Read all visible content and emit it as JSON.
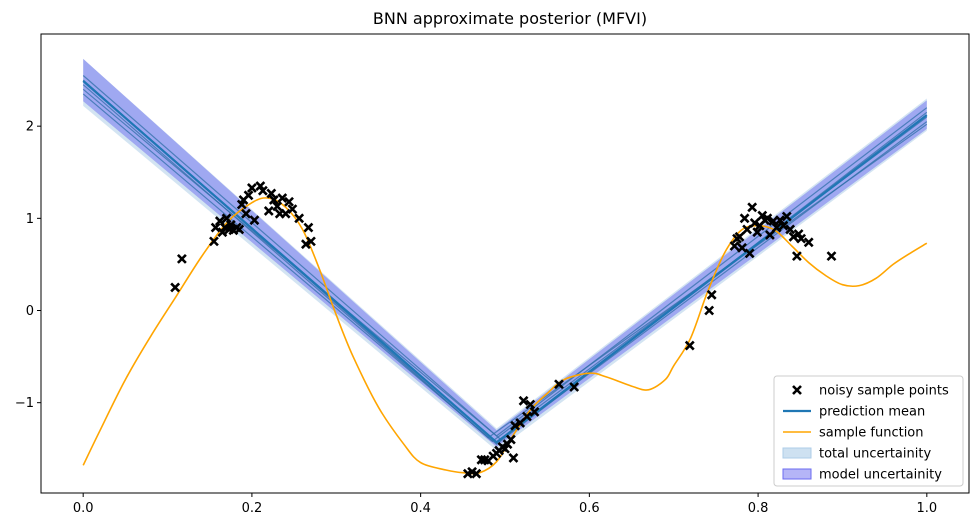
{
  "chart_data": {
    "type": "line",
    "title": "BNN approximate posterior (MFVI)",
    "xlabel": "",
    "ylabel": "",
    "xlim": [
      -0.05,
      1.05
    ],
    "ylim": [
      -1.98,
      3.0
    ],
    "xticks": [
      0.0,
      0.2,
      0.4,
      0.6,
      0.8,
      1.0
    ],
    "xtick_labels": [
      "0.0",
      "0.2",
      "0.4",
      "0.6",
      "0.8",
      "1.0"
    ],
    "yticks": [
      -1,
      0,
      1,
      2
    ],
    "ytick_labels": [
      "−1",
      "0",
      "1",
      "2"
    ],
    "grid": false,
    "legend_position": "lower-right",
    "colors": {
      "mean": "#1f77b4",
      "samples": "#2f6fa8",
      "sample_function": "#ffa500",
      "points": "#000000",
      "total_band": "#aecde8",
      "model_band": "#6b6bf0"
    },
    "legend": [
      {
        "label": "noisy sample points",
        "kind": "marker-x"
      },
      {
        "label": "prediction mean",
        "kind": "line-mean"
      },
      {
        "label": "sample function",
        "kind": "line-function"
      },
      {
        "label": "total uncertainity",
        "kind": "patch-total"
      },
      {
        "label": "model uncertainity",
        "kind": "patch-model"
      }
    ],
    "prediction_mean": {
      "x": [
        0.0,
        0.49,
        1.0
      ],
      "y": [
        2.49,
        -1.43,
        2.12
      ]
    },
    "model_uncertainty": {
      "x": [
        0.0,
        0.49,
        1.0
      ],
      "lower": [
        2.27,
        -1.48,
        1.97
      ],
      "upper": [
        2.73,
        -1.3,
        2.28
      ]
    },
    "total_uncertainty": {
      "x": [
        0.0,
        0.49,
        1.0
      ],
      "lower": [
        2.22,
        -1.52,
        1.95
      ],
      "upper": [
        2.73,
        -1.28,
        2.3
      ]
    },
    "posterior_samples": [
      {
        "x": [
          0.0,
          0.49,
          1.0
        ],
        "y": [
          2.55,
          -1.36,
          2.2
        ]
      },
      {
        "x": [
          0.0,
          0.485,
          1.0
        ],
        "y": [
          2.45,
          -1.42,
          2.1
        ]
      },
      {
        "x": [
          0.0,
          0.495,
          1.0
        ],
        "y": [
          2.4,
          -1.4,
          2.05
        ]
      },
      {
        "x": [
          0.0,
          0.49,
          1.0
        ],
        "y": [
          2.35,
          -1.45,
          2.15
        ]
      },
      {
        "x": [
          0.0,
          0.48,
          1.0
        ],
        "y": [
          2.5,
          -1.38,
          2.02
        ]
      }
    ],
    "sample_function": {
      "x": [
        0.0,
        0.02,
        0.05,
        0.08,
        0.11,
        0.14,
        0.17,
        0.2,
        0.22,
        0.24,
        0.26,
        0.28,
        0.3,
        0.32,
        0.35,
        0.38,
        0.4,
        0.43,
        0.45,
        0.47,
        0.49,
        0.51,
        0.53,
        0.55,
        0.57,
        0.6,
        0.62,
        0.65,
        0.67,
        0.69,
        0.7,
        0.72,
        0.74,
        0.76,
        0.78,
        0.8,
        0.82,
        0.84,
        0.86,
        0.88,
        0.9,
        0.92,
        0.94,
        0.96,
        0.98,
        1.0
      ],
      "y": [
        -1.68,
        -1.3,
        -0.75,
        -0.28,
        0.15,
        0.58,
        0.95,
        1.17,
        1.22,
        1.12,
        0.88,
        0.45,
        -0.05,
        -0.5,
        -1.05,
        -1.45,
        -1.65,
        -1.73,
        -1.76,
        -1.76,
        -1.64,
        -1.35,
        -1.08,
        -0.9,
        -0.75,
        -0.68,
        -0.72,
        -0.82,
        -0.86,
        -0.75,
        -0.6,
        -0.3,
        0.2,
        0.62,
        0.87,
        0.92,
        0.87,
        0.7,
        0.52,
        0.38,
        0.28,
        0.27,
        0.35,
        0.5,
        0.62,
        0.73
      ]
    },
    "noisy_points": {
      "x": [
        0.109,
        0.117,
        0.155,
        0.157,
        0.162,
        0.165,
        0.168,
        0.17,
        0.173,
        0.175,
        0.178,
        0.182,
        0.185,
        0.188,
        0.19,
        0.193,
        0.196,
        0.2,
        0.203,
        0.21,
        0.213,
        0.22,
        0.223,
        0.226,
        0.23,
        0.233,
        0.236,
        0.24,
        0.244,
        0.248,
        0.256,
        0.264,
        0.267,
        0.27,
        0.456,
        0.461,
        0.466,
        0.472,
        0.476,
        0.48,
        0.486,
        0.49,
        0.493,
        0.497,
        0.5,
        0.503,
        0.507,
        0.51,
        0.512,
        0.518,
        0.522,
        0.526,
        0.53,
        0.535,
        0.564,
        0.582,
        0.719,
        0.742,
        0.745,
        0.772,
        0.775,
        0.778,
        0.781,
        0.784,
        0.787,
        0.79,
        0.793,
        0.796,
        0.799,
        0.802,
        0.805,
        0.808,
        0.811,
        0.814,
        0.818,
        0.822,
        0.826,
        0.83,
        0.834,
        0.838,
        0.842,
        0.846,
        0.848,
        0.851,
        0.86,
        0.887
      ],
      "y": [
        0.25,
        0.56,
        0.75,
        0.9,
        0.97,
        0.85,
        0.9,
        1.0,
        0.88,
        0.93,
        0.87,
        0.9,
        0.88,
        1.15,
        1.2,
        1.05,
        1.25,
        1.33,
        0.98,
        1.35,
        1.3,
        1.08,
        1.27,
        1.2,
        1.13,
        1.05,
        1.22,
        1.05,
        1.18,
        1.1,
        1.0,
        0.72,
        0.9,
        0.75,
        -1.77,
        -1.75,
        -1.77,
        -1.62,
        -1.62,
        -1.63,
        -1.58,
        -1.55,
        -1.52,
        -1.48,
        -1.5,
        -1.45,
        -1.4,
        -1.6,
        -1.25,
        -1.22,
        -0.98,
        -1.15,
        -1.02,
        -1.1,
        -0.8,
        -0.83,
        -0.38,
        0.0,
        0.17,
        0.7,
        0.78,
        0.8,
        0.68,
        1.0,
        0.88,
        0.62,
        1.12,
        0.95,
        0.85,
        0.92,
        1.03,
        0.98,
        1.0,
        0.82,
        0.97,
        0.9,
        0.98,
        0.92,
        1.02,
        0.88,
        0.8,
        0.59,
        0.83,
        0.78,
        0.74,
        0.59
      ]
    }
  }
}
